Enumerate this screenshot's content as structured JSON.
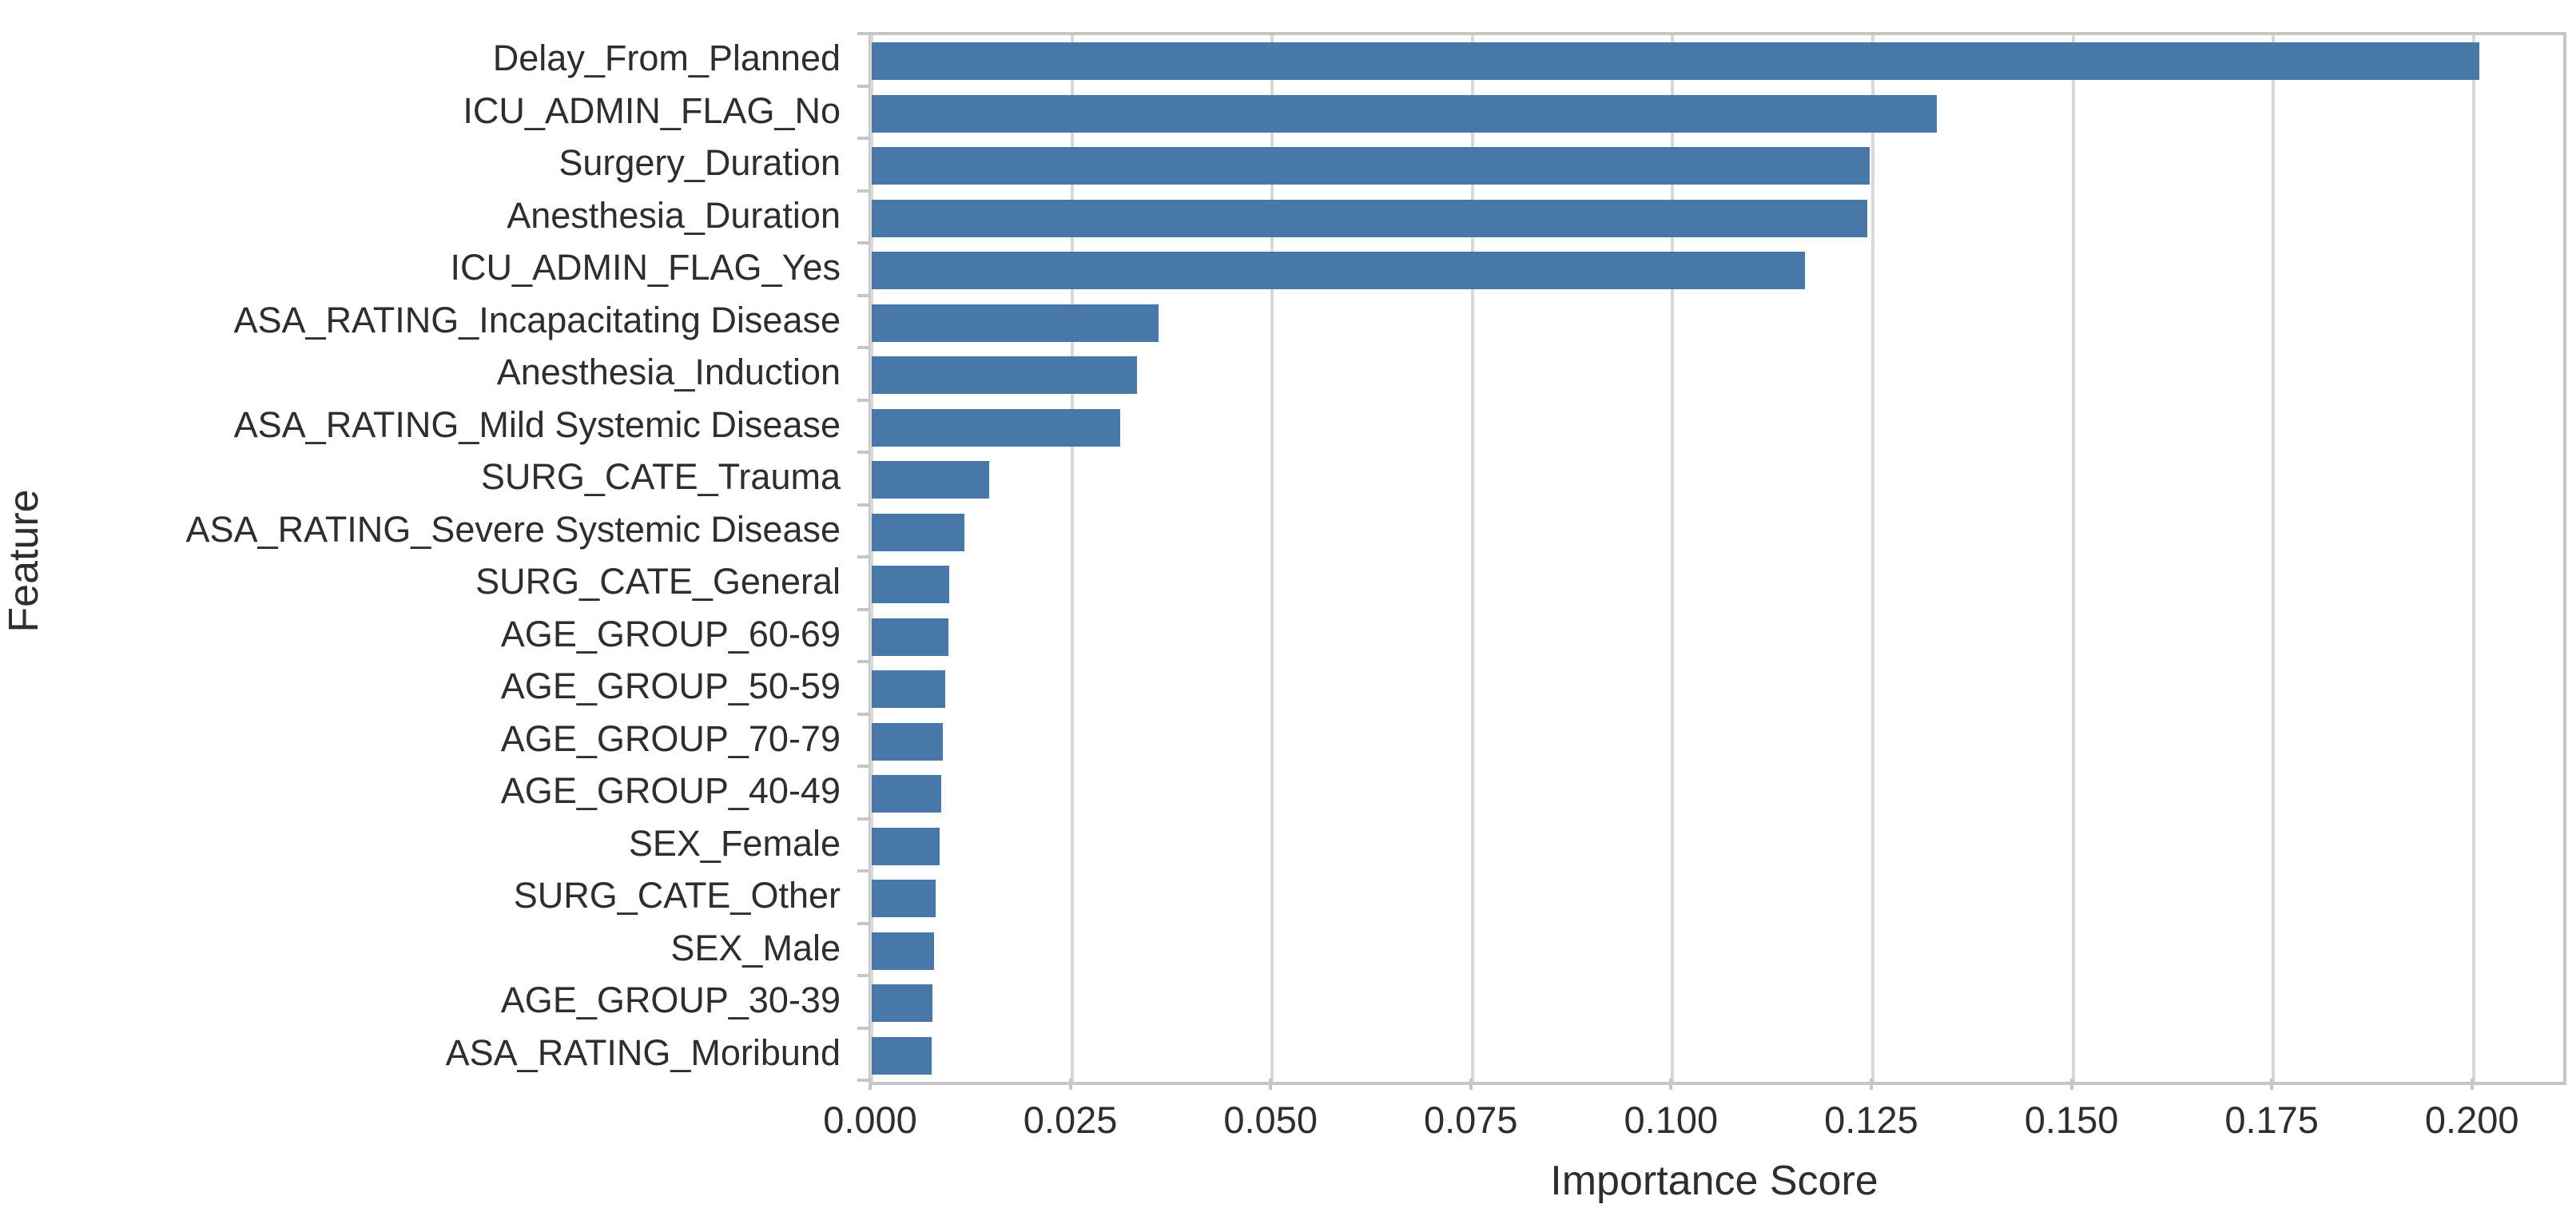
{
  "chart_data": {
    "type": "bar",
    "orientation": "horizontal",
    "title": "",
    "xlabel": "Importance Score",
    "ylabel": "Feature",
    "xlim": [
      0,
      0.2112
    ],
    "grid": true,
    "legend": false,
    "bar_color": "#4878a8",
    "xticks": [
      0.0,
      0.025,
      0.05,
      0.075,
      0.1,
      0.125,
      0.15,
      0.175,
      0.2
    ],
    "xtick_labels": [
      "0.000",
      "0.025",
      "0.050",
      "0.075",
      "0.100",
      "0.125",
      "0.150",
      "0.175",
      "0.200"
    ],
    "categories": [
      "Delay_From_Planned",
      "ICU_ADMIN_FLAG_No",
      "Surgery_Duration",
      "Anesthesia_Duration",
      "ICU_ADMIN_FLAG_Yes",
      "ASA_RATING_Incapacitating Disease",
      "Anesthesia_Induction",
      "ASA_RATING_Mild Systemic Disease",
      "SURG_CATE_Trauma",
      "ASA_RATING_Severe Systemic Disease",
      "SURG_CATE_General",
      "AGE_GROUP_60-69",
      "AGE_GROUP_50-59",
      "AGE_GROUP_70-79",
      "AGE_GROUP_40-49",
      "SEX_Female",
      "SURG_CATE_Other",
      "SEX_Male",
      "AGE_GROUP_30-39",
      "ASA_RATING_Moribund"
    ],
    "values": [
      0.2007,
      0.133,
      0.1246,
      0.1243,
      0.1165,
      0.0358,
      0.0331,
      0.031,
      0.0147,
      0.0116,
      0.0097,
      0.0096,
      0.0092,
      0.0089,
      0.0087,
      0.0085,
      0.008,
      0.0078,
      0.0076,
      0.0075
    ]
  },
  "colors": {
    "background": "#ffffff",
    "bar": "#4878a8",
    "grid": "#d8d8d8",
    "spine": "#c6c6c6",
    "text": "#2e2e2e"
  }
}
